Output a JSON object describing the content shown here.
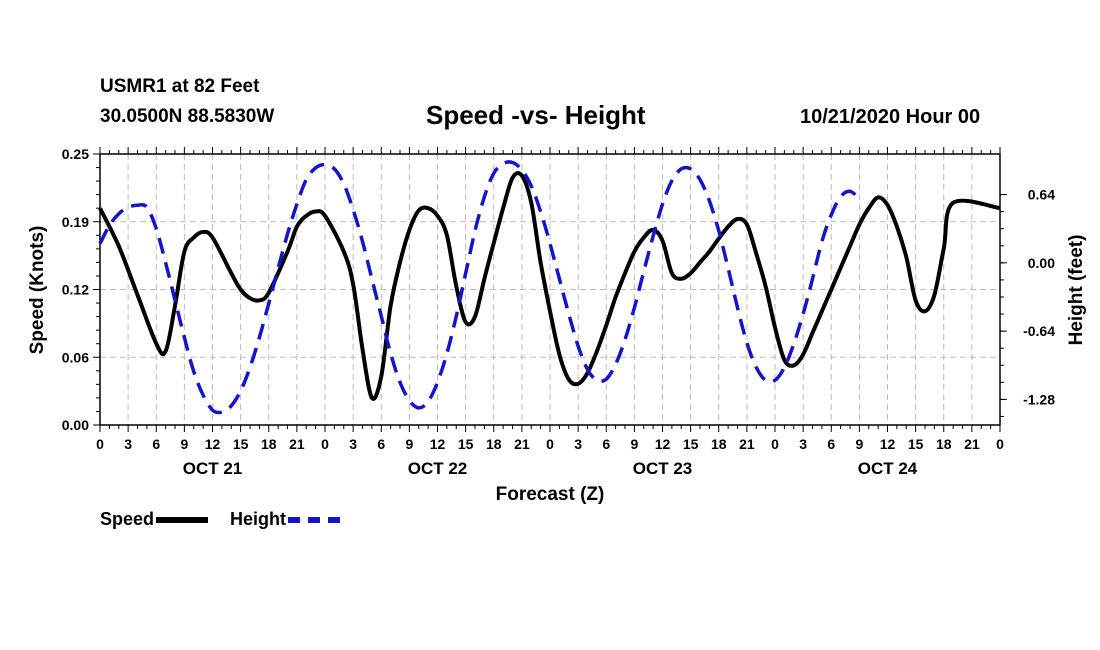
{
  "header": {
    "station": "USMR1 at 82 Feet",
    "coords": "30.0500N 88.5830W",
    "title": "Speed -vs- Height",
    "datetime": "10/21/2020 Hour 00"
  },
  "legend": {
    "speed": "Speed",
    "height": "Height"
  },
  "colors": {
    "speed": "#000000",
    "height": "#1414c8",
    "grid": "#bbbbbb"
  },
  "chart_data": {
    "type": "line",
    "title": "Speed -vs- Height",
    "xlabel": "Forecast (Z)",
    "ylabel": "Speed (Knots)",
    "y2label": "Height (feet)",
    "xlim": [
      0,
      96
    ],
    "ylim": [
      0,
      0.25
    ],
    "y2lim": [
      -1.52,
      1.02
    ],
    "x_tick_labels": [
      "0",
      "3",
      "6",
      "9",
      "12",
      "15",
      "18",
      "21",
      "0",
      "3",
      "6",
      "9",
      "12",
      "15",
      "18",
      "21",
      "0",
      "3",
      "6",
      "9",
      "12",
      "15",
      "18",
      "21",
      "0",
      "3",
      "6",
      "9",
      "12",
      "15",
      "18",
      "21",
      "0"
    ],
    "day_labels": [
      {
        "x": 12,
        "label": "OCT 21"
      },
      {
        "x": 36,
        "label": "OCT 22"
      },
      {
        "x": 60,
        "label": "OCT 23"
      },
      {
        "x": 84,
        "label": "OCT 24"
      }
    ],
    "y_ticks": [
      {
        "value": 0.0,
        "label": "0.00"
      },
      {
        "value": 0.0625,
        "label": "0.06"
      },
      {
        "value": 0.125,
        "label": "0.12"
      },
      {
        "value": 0.1875,
        "label": "0.19"
      },
      {
        "value": 0.25,
        "label": "0.25"
      }
    ],
    "y2_ticks": [
      {
        "value": 0.64,
        "label": "0.64"
      },
      {
        "value": 0.0,
        "label": "0.00"
      },
      {
        "value": -0.64,
        "label": "-0.64"
      },
      {
        "value": -1.28,
        "label": "-1.28"
      }
    ],
    "series": [
      {
        "name": "Speed",
        "axis": "left",
        "style": "solid",
        "points": [
          [
            0,
            0.2
          ],
          [
            2,
            0.165
          ],
          [
            4,
            0.12
          ],
          [
            6,
            0.075
          ],
          [
            7,
            0.068
          ],
          [
            8,
            0.11
          ],
          [
            9,
            0.16
          ],
          [
            10,
            0.173
          ],
          [
            11,
            0.178
          ],
          [
            12,
            0.173
          ],
          [
            14,
            0.14
          ],
          [
            15,
            0.125
          ],
          [
            16,
            0.117
          ],
          [
            17,
            0.115
          ],
          [
            18,
            0.122
          ],
          [
            20,
            0.16
          ],
          [
            21,
            0.183
          ],
          [
            22,
            0.193
          ],
          [
            23,
            0.197
          ],
          [
            24,
            0.193
          ],
          [
            26,
            0.16
          ],
          [
            27,
            0.13
          ],
          [
            28,
            0.07
          ],
          [
            29,
            0.025
          ],
          [
            30,
            0.045
          ],
          [
            31,
            0.11
          ],
          [
            32,
            0.15
          ],
          [
            33,
            0.18
          ],
          [
            34,
            0.198
          ],
          [
            35,
            0.2
          ],
          [
            36,
            0.193
          ],
          [
            37,
            0.175
          ],
          [
            38,
            0.128
          ],
          [
            39,
            0.095
          ],
          [
            40,
            0.1
          ],
          [
            41,
            0.135
          ],
          [
            42,
            0.168
          ],
          [
            43,
            0.2
          ],
          [
            44,
            0.228
          ],
          [
            45,
            0.23
          ],
          [
            46,
            0.205
          ],
          [
            47,
            0.15
          ],
          [
            48,
            0.105
          ],
          [
            49,
            0.065
          ],
          [
            50,
            0.042
          ],
          [
            51,
            0.038
          ],
          [
            52,
            0.048
          ],
          [
            53,
            0.068
          ],
          [
            54,
            0.092
          ],
          [
            55,
            0.118
          ],
          [
            56,
            0.14
          ],
          [
            57,
            0.16
          ],
          [
            58,
            0.173
          ],
          [
            59,
            0.18
          ],
          [
            60,
            0.17
          ],
          [
            61,
            0.14
          ],
          [
            62,
            0.135
          ],
          [
            63,
            0.14
          ],
          [
            64,
            0.15
          ],
          [
            65,
            0.16
          ],
          [
            66,
            0.172
          ],
          [
            67,
            0.183
          ],
          [
            68,
            0.19
          ],
          [
            69,
            0.185
          ],
          [
            70,
            0.158
          ],
          [
            71,
            0.128
          ],
          [
            72,
            0.09
          ],
          [
            73,
            0.06
          ],
          [
            74,
            0.055
          ],
          [
            75,
            0.065
          ],
          [
            76,
            0.085
          ],
          [
            77,
            0.105
          ],
          [
            78,
            0.125
          ],
          [
            79,
            0.145
          ],
          [
            80,
            0.165
          ],
          [
            81,
            0.185
          ],
          [
            82,
            0.2
          ],
          [
            83,
            0.21
          ],
          [
            84,
            0.203
          ],
          [
            85,
            0.183
          ],
          [
            86,
            0.155
          ],
          [
            87,
            0.115
          ],
          [
            88,
            0.105
          ],
          [
            89,
            0.12
          ],
          [
            90,
            0.163
          ],
          [
            91,
            0.205
          ],
          [
            96,
            0.2
          ]
        ]
      },
      {
        "name": "Height",
        "axis": "right",
        "style": "dashed",
        "points": [
          [
            0,
            0.18
          ],
          [
            1,
            0.35
          ],
          [
            2,
            0.46
          ],
          [
            3,
            0.52
          ],
          [
            4,
            0.54
          ],
          [
            5,
            0.52
          ],
          [
            6,
            0.32
          ],
          [
            7,
            0.0
          ],
          [
            8,
            -0.35
          ],
          [
            9,
            -0.7
          ],
          [
            10,
            -1.02
          ],
          [
            11,
            -1.24
          ],
          [
            12,
            -1.38
          ],
          [
            13,
            -1.4
          ],
          [
            14,
            -1.34
          ],
          [
            15,
            -1.2
          ],
          [
            16,
            -0.98
          ],
          [
            17,
            -0.7
          ],
          [
            18,
            -0.38
          ],
          [
            19,
            -0.05
          ],
          [
            20,
            0.27
          ],
          [
            21,
            0.55
          ],
          [
            22,
            0.78
          ],
          [
            23,
            0.89
          ],
          [
            24,
            0.92
          ],
          [
            25,
            0.88
          ],
          [
            26,
            0.74
          ],
          [
            27,
            0.5
          ],
          [
            28,
            0.2
          ],
          [
            29,
            -0.15
          ],
          [
            30,
            -0.5
          ],
          [
            31,
            -0.85
          ],
          [
            32,
            -1.12
          ],
          [
            33,
            -1.29
          ],
          [
            34,
            -1.36
          ],
          [
            35,
            -1.3
          ],
          [
            36,
            -1.12
          ],
          [
            37,
            -0.85
          ],
          [
            38,
            -0.5
          ],
          [
            39,
            -0.1
          ],
          [
            40,
            0.3
          ],
          [
            41,
            0.62
          ],
          [
            42,
            0.84
          ],
          [
            43,
            0.93
          ],
          [
            44,
            0.94
          ],
          [
            45,
            0.87
          ],
          [
            46,
            0.72
          ],
          [
            47,
            0.48
          ],
          [
            48,
            0.18
          ],
          [
            49,
            -0.15
          ],
          [
            50,
            -0.48
          ],
          [
            51,
            -0.78
          ],
          [
            52,
            -1.0
          ],
          [
            53,
            -1.1
          ],
          [
            54,
            -1.09
          ],
          [
            55,
            -0.95
          ],
          [
            56,
            -0.72
          ],
          [
            57,
            -0.42
          ],
          [
            58,
            -0.08
          ],
          [
            59,
            0.25
          ],
          [
            60,
            0.55
          ],
          [
            61,
            0.77
          ],
          [
            62,
            0.88
          ],
          [
            63,
            0.88
          ],
          [
            64,
            0.78
          ],
          [
            65,
            0.58
          ],
          [
            66,
            0.3
          ],
          [
            67,
            -0.05
          ],
          [
            68,
            -0.42
          ],
          [
            69,
            -0.75
          ],
          [
            70,
            -0.98
          ],
          [
            71,
            -1.1
          ],
          [
            72,
            -1.1
          ],
          [
            73,
            -0.98
          ],
          [
            74,
            -0.76
          ],
          [
            75,
            -0.48
          ],
          [
            76,
            -0.15
          ],
          [
            77,
            0.2
          ],
          [
            78,
            0.45
          ],
          [
            79,
            0.62
          ],
          [
            80,
            0.67
          ],
          [
            81,
            0.6
          ]
        ]
      }
    ]
  }
}
